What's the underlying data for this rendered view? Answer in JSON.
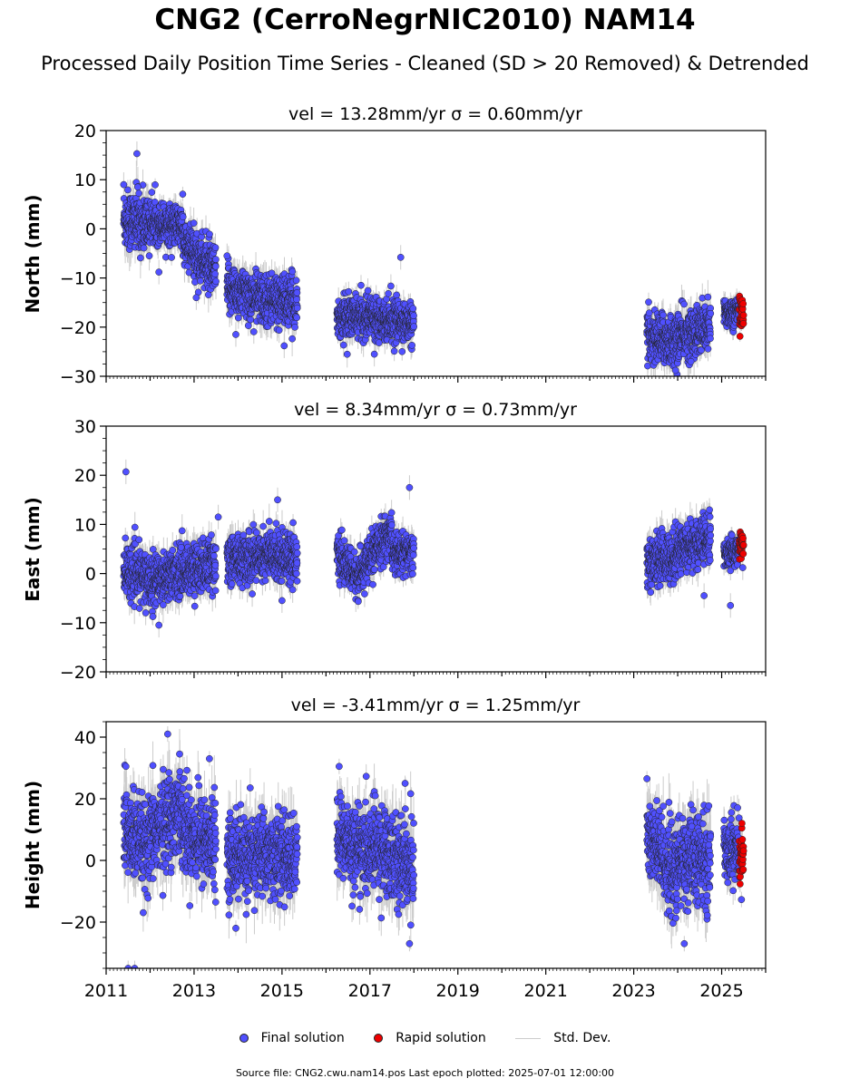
{
  "title": "CNG2 (CerroNegrNIC2010) NAM14",
  "subtitle": "Processed Daily Position Time Series - Cleaned (SD > 20 Removed) & Detrended",
  "legend": {
    "final": "Final solution",
    "rapid": "Rapid solution",
    "std": "Std. Dev."
  },
  "footer": "Source file: CNG2.cwu.nam14.pos  Last epoch plotted: 2025-07-01 12:00:00",
  "colors": {
    "final": "#5050ff",
    "rapid": "#ee0000",
    "std": "#cccccc",
    "edge": "#222222"
  },
  "chart_data": [
    {
      "type": "scatter",
      "title": "vel = 13.28mm/yr   σ = 0.60mm/yr",
      "ylabel": "North (mm)",
      "xlim": [
        2011.0,
        2026.0
      ],
      "ylim": [
        -30,
        20
      ],
      "yticks": [
        -30,
        -20,
        -10,
        0,
        10,
        20
      ],
      "xticks": [
        "2011",
        "2013",
        "2015",
        "2017",
        "2019",
        "2021",
        "2023",
        "2025"
      ],
      "segments": [
        {
          "start": 2011.4,
          "end": 2012.0,
          "mean_start": 2.0,
          "mean_end": 1.0,
          "spread": 3.0
        },
        {
          "start": 2012.0,
          "end": 2012.75,
          "mean_start": 1.5,
          "mean_end": 0.5,
          "spread": 2.0
        },
        {
          "start": 2012.75,
          "end": 2013.5,
          "mean_start": -3.0,
          "mean_end": -9.0,
          "spread": 2.5
        },
        {
          "start": 2013.75,
          "end": 2014.4,
          "mean_start": -12.0,
          "mean_end": -14.0,
          "spread": 2.5
        },
        {
          "start": 2014.4,
          "end": 2015.35,
          "mean_start": -14.0,
          "mean_end": -15.0,
          "spread": 2.5
        },
        {
          "start": 2016.25,
          "end": 2017.0,
          "mean_start": -18.0,
          "mean_end": -18.0,
          "spread": 2.0
        },
        {
          "start": 2017.0,
          "end": 2018.0,
          "mean_start": -17.5,
          "mean_end": -19.5,
          "spread": 2.0
        },
        {
          "start": 2023.3,
          "end": 2024.0,
          "mean_start": -22.0,
          "mean_end": -23.0,
          "spread": 2.5
        },
        {
          "start": 2024.0,
          "end": 2024.75,
          "mean_start": -22.0,
          "mean_end": -20.0,
          "spread": 2.5
        },
        {
          "start": 2025.05,
          "end": 2025.4,
          "mean_start": -17.0,
          "mean_end": -17.0,
          "spread": 1.5
        }
      ],
      "rapid": {
        "start": 2025.4,
        "end": 2025.5,
        "mean": -17.5,
        "spread": 1.8
      },
      "outliers": [
        [
          2011.7,
          15.3
        ],
        [
          2011.72,
          8.5
        ],
        [
          2011.4,
          9.0
        ],
        [
          2012.2,
          -8.8
        ],
        [
          2013.05,
          -14.0
        ],
        [
          2013.75,
          -5.5
        ],
        [
          2017.7,
          -5.8
        ],
        [
          2015.05,
          -23.8
        ],
        [
          2013.95,
          -21.5
        ],
        [
          2023.95,
          -28.8
        ],
        [
          2024.3,
          -27.0
        ],
        [
          2017.1,
          -25.5
        ]
      ]
    },
    {
      "type": "scatter",
      "title": "vel = 8.34mm/yr   σ = 0.73mm/yr",
      "ylabel": "East (mm)",
      "xlim": [
        2011.0,
        2026.0
      ],
      "ylim": [
        -20,
        30
      ],
      "yticks": [
        -20,
        -10,
        0,
        10,
        20,
        30
      ],
      "xticks": [
        "2011",
        "2013",
        "2015",
        "2017",
        "2019",
        "2021",
        "2023",
        "2025"
      ],
      "segments": [
        {
          "start": 2011.4,
          "end": 2012.0,
          "mean_start": 0.5,
          "mean_end": -1.0,
          "spread": 2.5
        },
        {
          "start": 2012.0,
          "end": 2012.75,
          "mean_start": -1.5,
          "mean_end": 0.5,
          "spread": 2.5
        },
        {
          "start": 2012.75,
          "end": 2013.5,
          "mean_start": 0.5,
          "mean_end": 2.0,
          "spread": 2.5
        },
        {
          "start": 2013.75,
          "end": 2014.4,
          "mean_start": 3.0,
          "mean_end": 3.0,
          "spread": 2.5
        },
        {
          "start": 2014.4,
          "end": 2015.35,
          "mean_start": 4.0,
          "mean_end": 3.5,
          "spread": 2.5
        },
        {
          "start": 2016.25,
          "end": 2016.75,
          "mean_start": 3.5,
          "mean_end": -1.0,
          "spread": 2.0
        },
        {
          "start": 2016.75,
          "end": 2017.5,
          "mean_start": 0.0,
          "mean_end": 9.0,
          "spread": 2.0
        },
        {
          "start": 2017.5,
          "end": 2018.0,
          "mean_start": 4.0,
          "mean_end": 4.0,
          "spread": 2.0
        },
        {
          "start": 2023.3,
          "end": 2024.0,
          "mean_start": 2.0,
          "mean_end": 4.0,
          "spread": 2.5
        },
        {
          "start": 2024.0,
          "end": 2024.75,
          "mean_start": 5.0,
          "mean_end": 7.0,
          "spread": 2.5
        },
        {
          "start": 2025.05,
          "end": 2025.4,
          "mean_start": 4.0,
          "mean_end": 4.5,
          "spread": 1.5
        }
      ],
      "rapid": {
        "start": 2025.4,
        "end": 2025.5,
        "mean": 5.5,
        "spread": 1.2
      },
      "outliers": [
        [
          2011.45,
          20.7
        ],
        [
          2012.2,
          -10.5
        ],
        [
          2013.55,
          11.5
        ],
        [
          2014.9,
          15.0
        ],
        [
          2017.9,
          17.5
        ],
        [
          2024.6,
          -4.5
        ],
        [
          2025.2,
          -6.5
        ],
        [
          2025.48,
          1.2
        ],
        [
          2011.9,
          -8.0
        ],
        [
          2015.0,
          -5.5
        ]
      ]
    },
    {
      "type": "scatter",
      "title": "vel = -3.41mm/yr   σ = 1.25mm/yr",
      "ylabel": "Height (mm)",
      "xlim": [
        2011.0,
        2026.0
      ],
      "ylim": [
        -35,
        45
      ],
      "yticks": [
        -20,
        0,
        20,
        40
      ],
      "xticks": [
        "2011",
        "2013",
        "2015",
        "2017",
        "2019",
        "2021",
        "2023",
        "2025"
      ],
      "segments": [
        {
          "start": 2011.4,
          "end": 2012.0,
          "mean_start": 10.0,
          "mean_end": 2.0,
          "spread": 7.0
        },
        {
          "start": 2012.0,
          "end": 2012.75,
          "mean_start": 8.0,
          "mean_end": 18.0,
          "spread": 7.0
        },
        {
          "start": 2012.75,
          "end": 2013.5,
          "mean_start": 10.0,
          "mean_end": 5.0,
          "spread": 7.0
        },
        {
          "start": 2013.75,
          "end": 2014.4,
          "mean_start": 2.0,
          "mean_end": 0.0,
          "spread": 6.5
        },
        {
          "start": 2014.4,
          "end": 2015.35,
          "mean_start": 3.0,
          "mean_end": 0.0,
          "spread": 6.5
        },
        {
          "start": 2016.25,
          "end": 2017.0,
          "mean_start": 8.0,
          "mean_end": 2.0,
          "spread": 6.5
        },
        {
          "start": 2017.0,
          "end": 2018.0,
          "mean_start": 5.0,
          "mean_end": -2.0,
          "spread": 7.0
        },
        {
          "start": 2023.3,
          "end": 2024.0,
          "mean_start": 8.0,
          "mean_end": -6.0,
          "spread": 7.0
        },
        {
          "start": 2024.0,
          "end": 2024.75,
          "mean_start": 0.0,
          "mean_end": 0.0,
          "spread": 7.0
        },
        {
          "start": 2025.05,
          "end": 2025.4,
          "mean_start": 4.0,
          "mean_end": 4.0,
          "spread": 5.0
        }
      ],
      "rapid": {
        "start": 2025.4,
        "end": 2025.5,
        "mean": 2.0,
        "spread": 4.5
      },
      "outliers": [
        [
          2012.4,
          41.0
        ],
        [
          2011.45,
          30.5
        ],
        [
          2016.3,
          30.5
        ],
        [
          2013.35,
          33.0
        ],
        [
          2011.5,
          -35.0
        ],
        [
          2011.65,
          -35.0
        ],
        [
          2017.9,
          -27.0
        ],
        [
          2023.3,
          26.5
        ],
        [
          2025.45,
          -12.7
        ],
        [
          2024.15,
          -27.0
        ],
        [
          2017.8,
          25.0
        ],
        [
          2013.95,
          -22.0
        ]
      ]
    }
  ]
}
